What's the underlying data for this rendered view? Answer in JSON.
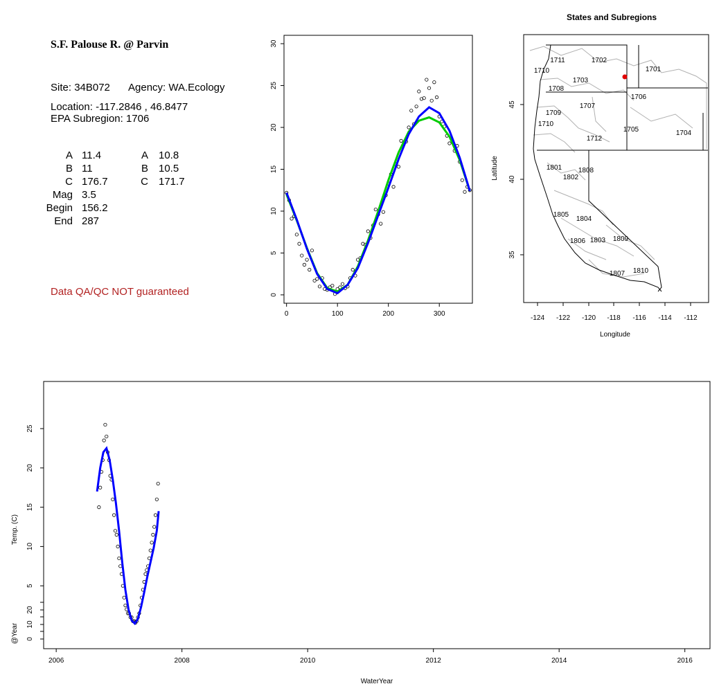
{
  "info": {
    "title": "S.F. Palouse R. @ Parvin",
    "site_label": "Site:",
    "site": "34B072",
    "agency_label": "Agency:",
    "agency": "WA.Ecology",
    "location_label": "Location:",
    "location": "-117.2846 , 46.8477",
    "subregion_label": "EPA Subregion:",
    "subregion": "1706",
    "params_left": [
      {
        "name": "A",
        "value": "11.4"
      },
      {
        "name": "B",
        "value": "11"
      },
      {
        "name": "C",
        "value": "176.7"
      },
      {
        "name": "Mag",
        "value": "3.5"
      },
      {
        "name": "Begin",
        "value": "156.2"
      },
      {
        "name": "End",
        "value": "287"
      }
    ],
    "params_right": [
      {
        "name": "A",
        "value": "10.8"
      },
      {
        "name": "B",
        "value": "10.5"
      },
      {
        "name": "C",
        "value": "171.7"
      }
    ],
    "qa_note": "Data QA/QC NOT guaranteed"
  },
  "map": {
    "title": "States and Subregions",
    "xlabel": "Longitude",
    "ylabel": "Latitude",
    "xticks": [
      "-124",
      "-122",
      "-120",
      "-118",
      "-116",
      "-114",
      "-112"
    ],
    "yticks": [
      "35",
      "40",
      "45"
    ],
    "regions": [
      "1711",
      "1702",
      "1701",
      "1710",
      "1703",
      "1708",
      "1706",
      "1707",
      "1709",
      "1710",
      "1705",
      "1704",
      "1712",
      "1801",
      "1808",
      "1802",
      "1805",
      "1804",
      "1806",
      "1803",
      "1809",
      "1807",
      "1810"
    ],
    "site_color": "#e00000"
  },
  "chart_data": [
    {
      "type": "scatter",
      "title": "",
      "xlabel": "",
      "ylabel": "",
      "xlim": [
        -5,
        365
      ],
      "ylim": [
        -1,
        31
      ],
      "xticks": [
        0,
        100,
        200,
        300
      ],
      "yticks": [
        0,
        5,
        10,
        15,
        20,
        25,
        30
      ],
      "observations_x": [
        0,
        5,
        10,
        15,
        20,
        25,
        30,
        35,
        40,
        45,
        50,
        55,
        60,
        65,
        70,
        75,
        80,
        85,
        90,
        95,
        100,
        105,
        110,
        115,
        120,
        125,
        130,
        135,
        140,
        145,
        150,
        155,
        160,
        165,
        170,
        175,
        180,
        185,
        190,
        195,
        200,
        205,
        210,
        215,
        220,
        225,
        230,
        235,
        240,
        245,
        250,
        255,
        260,
        265,
        270,
        275,
        280,
        285,
        290,
        295,
        300,
        305,
        310,
        315,
        320,
        325,
        330,
        335,
        340,
        345,
        350,
        355,
        360
      ],
      "observations_y": [
        12.2,
        11.3,
        9.1,
        9.4,
        7.2,
        6.1,
        4.7,
        3.6,
        4.2,
        3.0,
        5.3,
        1.7,
        1.9,
        1.0,
        2.0,
        0.7,
        0.6,
        0.9,
        1.1,
        0.1,
        0.7,
        0.9,
        1.3,
        0.8,
        1.0,
        2.0,
        3.0,
        2.3,
        4.2,
        4.4,
        6.1,
        6.0,
        7.6,
        6.8,
        8.3,
        10.2,
        9.6,
        8.5,
        9.9,
        11.9,
        13.3,
        14.4,
        12.9,
        15.6,
        15.3,
        18.4,
        18.0,
        18.3,
        20.0,
        22.0,
        20.4,
        22.5,
        24.3,
        23.4,
        23.5,
        25.7,
        24.7,
        23.2,
        25.4,
        23.6,
        21.3,
        20.7,
        20.1,
        19.0,
        18.1,
        18.5,
        17.2,
        17.8,
        15.9,
        13.7,
        12.3,
        12.9,
        12.5
      ],
      "series": [
        {
          "color": "#0000ff",
          "x": [
            0,
            20,
            40,
            60,
            80,
            100,
            120,
            140,
            160,
            180,
            200,
            220,
            240,
            260,
            280,
            300,
            320,
            340,
            360
          ],
          "y": [
            12.2,
            9.0,
            5.5,
            2.5,
            0.7,
            0.2,
            1.2,
            3.2,
            6.2,
            9.5,
            12.8,
            16.2,
            19.2,
            21.3,
            22.4,
            21.7,
            19.6,
            16.4,
            12.4
          ]
        },
        {
          "color": "#00cc00",
          "x": [
            0,
            20,
            40,
            60,
            80,
            100,
            120,
            140,
            160,
            180,
            200,
            220,
            240,
            260,
            280,
            300,
            320,
            340,
            360
          ],
          "y": [
            12.0,
            8.9,
            5.6,
            2.6,
            0.8,
            0.4,
            1.2,
            3.4,
            6.5,
            10.0,
            13.7,
            17.0,
            19.5,
            20.8,
            21.2,
            20.6,
            18.9,
            16.1,
            12.4
          ]
        }
      ]
    },
    {
      "type": "scatter",
      "title": "",
      "xlabel": "WaterYear",
      "ylabel": "Temp. (C)",
      "ylabel2": "@Year",
      "xlim": [
        2005.8,
        2016.4
      ],
      "xticks": [
        2006,
        2008,
        2010,
        2012,
        2014,
        2016
      ],
      "yticks": [
        5,
        10,
        15,
        20,
        25
      ],
      "yticks2": [
        0,
        10,
        20
      ],
      "ylim": [
        -3,
        31
      ],
      "observations_x": [
        2006.68,
        2006.7,
        2006.72,
        2006.74,
        2006.76,
        2006.78,
        2006.8,
        2006.82,
        2006.84,
        2006.86,
        2006.88,
        2006.9,
        2006.92,
        2006.94,
        2006.96,
        2006.98,
        2007.0,
        2007.02,
        2007.04,
        2007.06,
        2007.08,
        2007.1,
        2007.12,
        2007.14,
        2007.16,
        2007.18,
        2007.2,
        2007.22,
        2007.24,
        2007.26,
        2007.28,
        2007.3,
        2007.32,
        2007.34,
        2007.36,
        2007.38,
        2007.4,
        2007.42,
        2007.44,
        2007.46,
        2007.48,
        2007.5,
        2007.52,
        2007.54,
        2007.56,
        2007.58,
        2007.6,
        2007.62
      ],
      "observations_y": [
        15.0,
        17.5,
        19.5,
        21.0,
        23.5,
        25.5,
        24.0,
        22.0,
        21.0,
        19.0,
        18.5,
        16.0,
        14.0,
        12.0,
        11.5,
        10.0,
        8.5,
        7.5,
        6.5,
        5.0,
        3.5,
        2.5,
        2.0,
        1.5,
        1.5,
        1.0,
        1.0,
        0.5,
        0.5,
        0.3,
        0.5,
        1.0,
        1.5,
        2.5,
        3.5,
        4.5,
        5.5,
        6.5,
        7.0,
        7.5,
        8.5,
        9.5,
        10.5,
        11.5,
        12.5,
        14.0,
        16.0,
        18.0
      ],
      "series": [
        {
          "color": "#0000ff",
          "x": [
            2006.65,
            2006.7,
            2006.75,
            2006.8,
            2006.85,
            2006.9,
            2006.95,
            2007.0,
            2007.05,
            2007.1,
            2007.15,
            2007.2,
            2007.25,
            2007.3,
            2007.35,
            2007.4,
            2007.45,
            2007.5,
            2007.55,
            2007.6,
            2007.63
          ],
          "y": [
            17.0,
            20.0,
            22.0,
            22.5,
            21.0,
            18.5,
            15.5,
            12.0,
            8.0,
            4.5,
            2.0,
            0.6,
            0.2,
            0.8,
            2.3,
            4.2,
            6.2,
            8.0,
            9.8,
            12.0,
            14.5
          ]
        }
      ]
    }
  ]
}
